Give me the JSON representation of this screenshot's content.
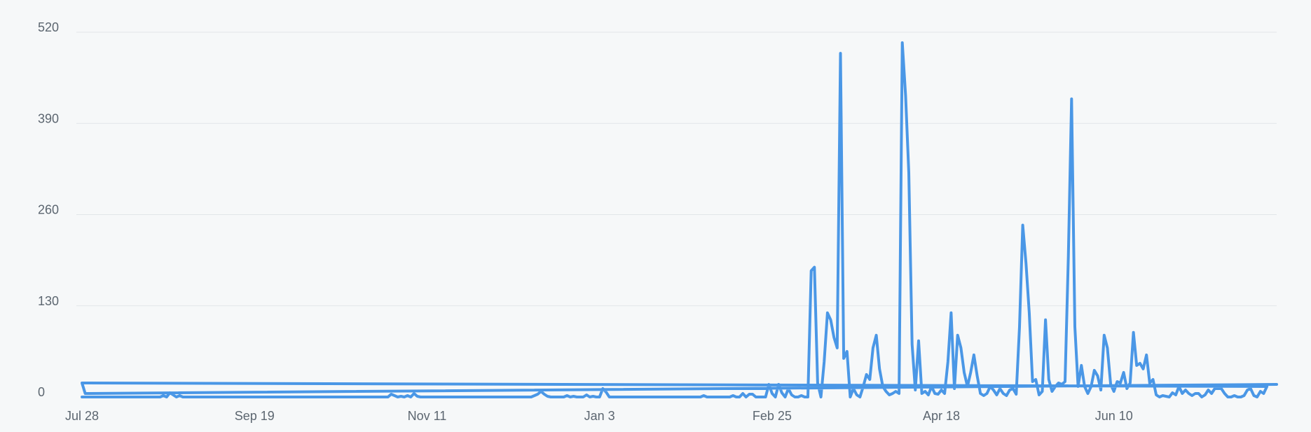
{
  "colors": {
    "background": "#f6f8f9",
    "grid": "#e2e6e9",
    "series": "#4a97e6",
    "tick_text": "#5c6670"
  },
  "chart_data": {
    "type": "line",
    "title": "",
    "xlabel": "",
    "ylabel": "",
    "ylim": [
      0,
      520
    ],
    "yticks": [
      "0",
      "130",
      "260",
      "390",
      "520"
    ],
    "xticks": [
      "Jul 28",
      "Sep 19",
      "Nov 11",
      "Jan 3",
      "Feb 25",
      "Apr 18",
      "Jun 10"
    ],
    "x_start": "Jul 28",
    "x_end": "Jul 30",
    "grid": true,
    "legend": "none",
    "series": [
      {
        "color": "#4a97e6",
        "points": [
          [
            "Jul 28",
            0
          ],
          [
            "Aug 1",
            0
          ],
          [
            "Aug 5",
            0
          ],
          [
            "Aug 9",
            0
          ],
          [
            "Aug 13",
            0
          ],
          [
            "Aug 17",
            0
          ],
          [
            "Aug 21",
            0
          ],
          [
            "Aug 22",
            2
          ],
          [
            "Aug 23",
            0
          ],
          [
            "Aug 24",
            6
          ],
          [
            "Aug 25",
            3
          ],
          [
            "Aug 26",
            0
          ],
          [
            "Aug 27",
            2
          ],
          [
            "Aug 28",
            0
          ],
          [
            "Sep 2",
            0
          ],
          [
            "Sep 10",
            0
          ],
          [
            "Sep 19",
            0
          ],
          [
            "Sep 28",
            0
          ],
          [
            "Oct 8",
            0
          ],
          [
            "Oct 18",
            0
          ],
          [
            "Oct 28",
            0
          ],
          [
            "Oct 30",
            0
          ],
          [
            "Oct 31",
            4
          ],
          [
            "Nov 1",
            2
          ],
          [
            "Nov 2",
            0
          ],
          [
            "Nov 3",
            1
          ],
          [
            "Nov 4",
            0
          ],
          [
            "Nov 5",
            2
          ],
          [
            "Nov 6",
            0
          ],
          [
            "Nov 7",
            5
          ],
          [
            "Nov 8",
            1
          ],
          [
            "Nov 9",
            0
          ],
          [
            "Nov 15",
            0
          ],
          [
            "Nov 25",
            0
          ],
          [
            "Dec 5",
            0
          ],
          [
            "Dec 13",
            0
          ],
          [
            "Dec 14",
            2
          ],
          [
            "Dec 15",
            4
          ],
          [
            "Dec 16",
            8
          ],
          [
            "Dec 17",
            4
          ],
          [
            "Dec 18",
            1
          ],
          [
            "Dec 19",
            0
          ],
          [
            "Dec 23",
            0
          ],
          [
            "Dec 24",
            2
          ],
          [
            "Dec 25",
            0
          ],
          [
            "Dec 26",
            1
          ],
          [
            "Dec 27",
            0
          ],
          [
            "Dec 29",
            0
          ],
          [
            "Dec 30",
            3
          ],
          [
            "Dec 31",
            0
          ],
          [
            "Jan 1",
            1
          ],
          [
            "Jan 2",
            0
          ],
          [
            "Jan 3",
            0
          ],
          [
            "Jan 4",
            12
          ],
          [
            "Jan 5",
            7
          ],
          [
            "Jan 6",
            0
          ],
          [
            "Jan 10",
            0
          ],
          [
            "Jan 20",
            0
          ],
          [
            "Jan 30",
            0
          ],
          [
            "Feb 3",
            0
          ],
          [
            "Feb 4",
            2
          ],
          [
            "Feb 5",
            0
          ],
          [
            "Feb 10",
            0
          ],
          [
            "Feb 12",
            0
          ],
          [
            "Feb 13",
            2
          ],
          [
            "Feb 14",
            0
          ],
          [
            "Feb 15",
            0
          ],
          [
            "Feb 16",
            5
          ],
          [
            "Feb 17",
            0
          ],
          [
            "Feb 18",
            4
          ],
          [
            "Feb 19",
            4
          ],
          [
            "Feb 20",
            0
          ],
          [
            "Feb 21",
            0
          ],
          [
            "Feb 22",
            0
          ],
          [
            "Feb 23",
            0
          ],
          [
            "Feb 24",
            18
          ],
          [
            "Feb 25",
            5
          ],
          [
            "Feb 26",
            0
          ],
          [
            "Feb 27",
            18
          ],
          [
            "Feb 28",
            6
          ],
          [
            "Mar 1",
            0
          ],
          [
            "Mar 2",
            12
          ],
          [
            "Mar 3",
            3
          ],
          [
            "Mar 4",
            0
          ],
          [
            "Mar 5",
            0
          ],
          [
            "Mar 6",
            2
          ],
          [
            "Mar 7",
            0
          ],
          [
            "Mar 8",
            0
          ],
          [
            "Mar 9",
            180
          ],
          [
            "Mar 10",
            185
          ],
          [
            "Mar 11",
            20
          ],
          [
            "Mar 12",
            0
          ],
          [
            "Mar 13",
            50
          ],
          [
            "Mar 14",
            120
          ],
          [
            "Mar 15",
            110
          ],
          [
            "Mar 16",
            85
          ],
          [
            "Mar 17",
            70
          ],
          [
            "Mar 18",
            490
          ],
          [
            "Mar 19",
            55
          ],
          [
            "Mar 20",
            65
          ],
          [
            "Mar 21",
            0
          ],
          [
            "Mar 22",
            12
          ],
          [
            "Mar 23",
            3
          ],
          [
            "Mar 24",
            0
          ],
          [
            "Mar 25",
            15
          ],
          [
            "Mar 26",
            32
          ],
          [
            "Mar 27",
            25
          ],
          [
            "Mar 28",
            70
          ],
          [
            "Mar 29",
            88
          ],
          [
            "Mar 30",
            40
          ],
          [
            "Mar 31",
            15
          ],
          [
            "Apr 1",
            8
          ],
          [
            "Apr 2",
            3
          ],
          [
            "Apr 3",
            5
          ],
          [
            "Apr 4",
            8
          ],
          [
            "Apr 5",
            5
          ],
          [
            "Apr 6",
            505
          ],
          [
            "Apr 7",
            430
          ],
          [
            "Apr 8",
            320
          ],
          [
            "Apr 9",
            75
          ],
          [
            "Apr 10",
            10
          ],
          [
            "Apr 11",
            80
          ],
          [
            "Apr 12",
            5
          ],
          [
            "Apr 13",
            8
          ],
          [
            "Apr 14",
            3
          ],
          [
            "Apr 15",
            15
          ],
          [
            "Apr 16",
            5
          ],
          [
            "Apr 17",
            4
          ],
          [
            "Apr 18",
            10
          ],
          [
            "Apr 19",
            5
          ],
          [
            "Apr 20",
            50
          ],
          [
            "Apr 21",
            120
          ],
          [
            "Apr 22",
            12
          ],
          [
            "Apr 23",
            88
          ],
          [
            "Apr 24",
            70
          ],
          [
            "Apr 25",
            35
          ],
          [
            "Apr 26",
            15
          ],
          [
            "Apr 27",
            35
          ],
          [
            "Apr 28",
            60
          ],
          [
            "Apr 29",
            30
          ],
          [
            "Apr 30",
            5
          ],
          [
            "May 1",
            2
          ],
          [
            "May 2",
            5
          ],
          [
            "May 3",
            15
          ],
          [
            "May 4",
            10
          ],
          [
            "May 5",
            3
          ],
          [
            "May 6",
            12
          ],
          [
            "May 7",
            5
          ],
          [
            "May 8",
            2
          ],
          [
            "May 9",
            10
          ],
          [
            "May 10",
            12
          ],
          [
            "May 11",
            4
          ],
          [
            "May 12",
            100
          ],
          [
            "May 13",
            245
          ],
          [
            "May 14",
            190
          ],
          [
            "May 15",
            120
          ],
          [
            "May 16",
            22
          ],
          [
            "May 17",
            25
          ],
          [
            "May 18",
            3
          ],
          [
            "May 19",
            8
          ],
          [
            "May 20",
            110
          ],
          [
            "May 21",
            25
          ],
          [
            "May 22",
            8
          ],
          [
            "May 23",
            15
          ],
          [
            "May 24",
            20
          ],
          [
            "May 25",
            18
          ],
          [
            "May 26",
            22
          ],
          [
            "May 27",
            200
          ],
          [
            "May 28",
            425
          ],
          [
            "May 29",
            100
          ],
          [
            "May 30",
            15
          ],
          [
            "May 31",
            45
          ],
          [
            "Jun 1",
            15
          ],
          [
            "Jun 2",
            5
          ],
          [
            "Jun 3",
            15
          ],
          [
            "Jun 4",
            38
          ],
          [
            "Jun 5",
            30
          ],
          [
            "Jun 6",
            10
          ],
          [
            "Jun 7",
            88
          ],
          [
            "Jun 8",
            70
          ],
          [
            "Jun 9",
            18
          ],
          [
            "Jun 10",
            8
          ],
          [
            "Jun 11",
            22
          ],
          [
            "Jun 12",
            20
          ],
          [
            "Jun 13",
            35
          ],
          [
            "Jun 14",
            12
          ],
          [
            "Jun 15",
            20
          ],
          [
            "Jun 16",
            92
          ],
          [
            "Jun 17",
            45
          ],
          [
            "Jun 18",
            48
          ],
          [
            "Jun 19",
            40
          ],
          [
            "Jun 20",
            60
          ],
          [
            "Jun 21",
            20
          ],
          [
            "Jun 22",
            25
          ],
          [
            "Jun 23",
            3
          ],
          [
            "Jun 24",
            0
          ],
          [
            "Jun 25",
            2
          ],
          [
            "Jun 26",
            1
          ],
          [
            "Jun 27",
            0
          ],
          [
            "Jun 28",
            6
          ],
          [
            "Jun 29",
            3
          ],
          [
            "Jun 30",
            15
          ],
          [
            "Jul 1",
            5
          ],
          [
            "Jul 2",
            10
          ],
          [
            "Jul 3",
            5
          ],
          [
            "Jul 4",
            2
          ],
          [
            "Jul 5",
            5
          ],
          [
            "Jul 6",
            5
          ],
          [
            "Jul 7",
            0
          ],
          [
            "Jul 8",
            3
          ],
          [
            "Jul 9",
            10
          ],
          [
            "Jul 10",
            5
          ],
          [
            "Jul 11",
            12
          ],
          [
            "Jul 12",
            12
          ],
          [
            "Jul 13",
            12
          ],
          [
            "Jul 14",
            5
          ],
          [
            "Jul 15",
            0
          ],
          [
            "Jul 16",
            0
          ],
          [
            "Jul 17",
            2
          ],
          [
            "Jul 18",
            0
          ],
          [
            "Jul 19",
            0
          ],
          [
            "Jul 20",
            2
          ],
          [
            "Jul 21",
            10
          ],
          [
            "Jul 22",
            12
          ],
          [
            "Jul 23",
            2
          ],
          [
            "Jul 24",
            0
          ],
          [
            "Jul 25",
            8
          ],
          [
            "Jul 26",
            5
          ],
          [
            "Jul 27",
            15
          ],
          [
            "Jul 28",
            20
          ],
          [
            "Jul 29",
            5
          ],
          [
            "Jul 30",
            18
          ]
        ]
      }
    ]
  }
}
